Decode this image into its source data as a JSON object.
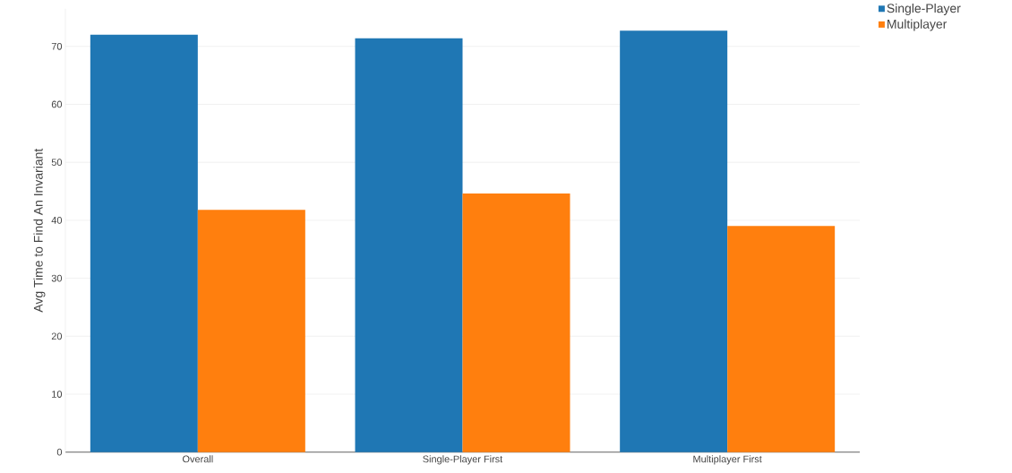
{
  "chart_data": {
    "type": "bar",
    "ylabel": "Avg Time to Find An Invariant",
    "categories": [
      "Overall",
      "Single-Player First",
      "Multiplayer First"
    ],
    "series": [
      {
        "name": "Single-Player",
        "color": "#1f77b4",
        "values": [
          72.0,
          71.4,
          72.7
        ]
      },
      {
        "name": "Multiplayer",
        "color": "#ff7f0e",
        "values": [
          41.8,
          44.6,
          39.0
        ]
      }
    ],
    "ylim": [
      0,
      76.5
    ],
    "yticks": [
      0,
      10,
      20,
      30,
      40,
      50,
      60,
      70
    ],
    "grid": "y",
    "legend": "top right"
  }
}
